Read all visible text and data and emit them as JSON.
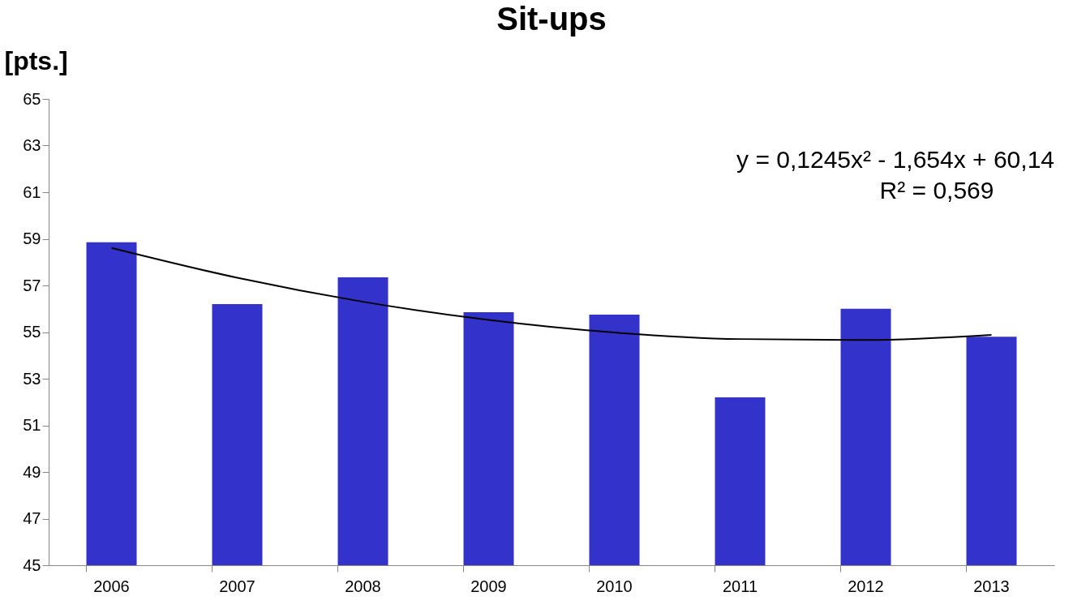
{
  "chart_data": {
    "type": "bar",
    "title": "Sit-ups",
    "ylabel": "[pts.]",
    "categories": [
      "2006",
      "2007",
      "2008",
      "2009",
      "2010",
      "2011",
      "2012",
      "2013"
    ],
    "series": [
      {
        "color": "#3333cc",
        "values": [
          58.85,
          56.2,
          57.35,
          55.85,
          55.75,
          52.2,
          56.0,
          54.8
        ]
      },
      {
        "type": "line",
        "color": "#000000",
        "values": [
          58.61,
          57.33,
          56.3,
          55.52,
          54.98,
          54.7,
          54.66,
          54.88
        ]
      }
    ],
    "ylim": [
      45,
      65
    ],
    "yticks": [
      45,
      47,
      49,
      51,
      53,
      55,
      57,
      59,
      61,
      63,
      65
    ],
    "grid": false,
    "annotations": [
      "y = 0,1245x² - 1,654x + 60,14",
      "R² = 0,569"
    ]
  }
}
